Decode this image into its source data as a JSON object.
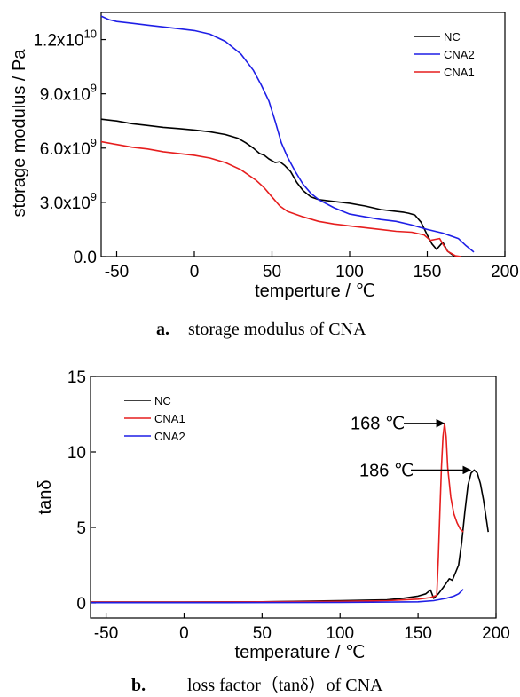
{
  "chart_data": [
    {
      "type": "line",
      "caption_letter": "a.",
      "caption_text": "storage modulus of CNA",
      "xlabel": "temperture / ℃",
      "ylabel": "storage modulus / Pa",
      "xlim": [
        -60,
        200
      ],
      "ylim": [
        0,
        13500000000
      ],
      "xticks": [
        -50,
        0,
        50,
        100,
        150,
        200
      ],
      "yticks": [
        {
          "value": 0,
          "base": "0.0",
          "exp": ""
        },
        {
          "value": 3000000000,
          "base": "3.0x10",
          "exp": "9"
        },
        {
          "value": 6000000000,
          "base": "6.0x10",
          "exp": "9"
        },
        {
          "value": 9000000000,
          "base": "9.0x10",
          "exp": "9"
        },
        {
          "value": 12000000000,
          "base": "1.2x10",
          "exp": "10"
        }
      ],
      "legend_position": "top-right",
      "series": [
        {
          "name": "NC",
          "color": "#000000",
          "points": [
            [
              -60,
              7600000000.0
            ],
            [
              -50,
              7500000000.0
            ],
            [
              -40,
              7350000000.0
            ],
            [
              -30,
              7250000000.0
            ],
            [
              -20,
              7150000000.0
            ],
            [
              -10,
              7080000000.0
            ],
            [
              0,
              7000000000.0
            ],
            [
              10,
              6900000000.0
            ],
            [
              20,
              6750000000.0
            ],
            [
              28,
              6550000000.0
            ],
            [
              33,
              6300000000.0
            ],
            [
              38,
              6000000000.0
            ],
            [
              42,
              5700000000.0
            ],
            [
              45,
              5600000000.0
            ],
            [
              48,
              5400000000.0
            ],
            [
              52,
              5200000000.0
            ],
            [
              55,
              5250000000.0
            ],
            [
              58,
              5050000000.0
            ],
            [
              62,
              4700000000.0
            ],
            [
              66,
              4100000000.0
            ],
            [
              70,
              3650000000.0
            ],
            [
              75,
              3300000000.0
            ],
            [
              80,
              3150000000.0
            ],
            [
              90,
              3050000000.0
            ],
            [
              100,
              2950000000.0
            ],
            [
              110,
              2800000000.0
            ],
            [
              120,
              2600000000.0
            ],
            [
              130,
              2500000000.0
            ],
            [
              135,
              2450000000.0
            ],
            [
              138,
              2400000000.0
            ],
            [
              142,
              2300000000.0
            ],
            [
              146,
              1900000000.0
            ],
            [
              150,
              1200000000.0
            ],
            [
              153,
              700000000.0
            ],
            [
              156,
              400000000.0
            ],
            [
              160,
              800000000.0
            ],
            [
              163,
              300000000.0
            ],
            [
              167,
              50000000.0
            ],
            [
              170,
              0.0
            ],
            [
              200,
              0.0
            ]
          ]
        },
        {
          "name": "CNA2",
          "color": "#1f1fe6",
          "points": [
            [
              -60,
              13300000000.0
            ],
            [
              -55,
              13100000000.0
            ],
            [
              -50,
              13000000000.0
            ],
            [
              -40,
              12900000000.0
            ],
            [
              -30,
              12800000000.0
            ],
            [
              -20,
              12700000000.0
            ],
            [
              -10,
              12600000000.0
            ],
            [
              0,
              12500000000.0
            ],
            [
              10,
              12300000000.0
            ],
            [
              20,
              11900000000.0
            ],
            [
              30,
              11200000000.0
            ],
            [
              38,
              10300000000.0
            ],
            [
              43,
              9500000000.0
            ],
            [
              48,
              8600000000.0
            ],
            [
              52,
              7500000000.0
            ],
            [
              56,
              6300000000.0
            ],
            [
              60,
              5500000000.0
            ],
            [
              65,
              4700000000.0
            ],
            [
              70,
              4000000000.0
            ],
            [
              75,
              3500000000.0
            ],
            [
              80,
              3150000000.0
            ],
            [
              90,
              2700000000.0
            ],
            [
              100,
              2350000000.0
            ],
            [
              110,
              2200000000.0
            ],
            [
              120,
              2050000000.0
            ],
            [
              130,
              1950000000.0
            ],
            [
              140,
              1750000000.0
            ],
            [
              150,
              1500000000.0
            ],
            [
              160,
              1300000000.0
            ],
            [
              170,
              1000000000.0
            ],
            [
              175,
              600000000.0
            ],
            [
              180,
              250000000.0
            ]
          ]
        },
        {
          "name": "CNA1",
          "color": "#e61e1e",
          "points": [
            [
              -60,
              6350000000.0
            ],
            [
              -50,
              6200000000.0
            ],
            [
              -40,
              6050000000.0
            ],
            [
              -30,
              5950000000.0
            ],
            [
              -20,
              5800000000.0
            ],
            [
              -10,
              5700000000.0
            ],
            [
              0,
              5600000000.0
            ],
            [
              10,
              5450000000.0
            ],
            [
              20,
              5200000000.0
            ],
            [
              30,
              4800000000.0
            ],
            [
              40,
              4200000000.0
            ],
            [
              45,
              3800000000.0
            ],
            [
              50,
              3300000000.0
            ],
            [
              55,
              2800000000.0
            ],
            [
              60,
              2500000000.0
            ],
            [
              70,
              2200000000.0
            ],
            [
              80,
              1950000000.0
            ],
            [
              90,
              1800000000.0
            ],
            [
              100,
              1700000000.0
            ],
            [
              110,
              1600000000.0
            ],
            [
              120,
              1500000000.0
            ],
            [
              130,
              1400000000.0
            ],
            [
              140,
              1350000000.0
            ],
            [
              148,
              1200000000.0
            ],
            [
              152,
              900000000.0
            ],
            [
              155,
              950000000.0
            ],
            [
              158,
              1000000000.0
            ],
            [
              160,
              700000000.0
            ],
            [
              163,
              300000000.0
            ],
            [
              168,
              50000000.0
            ],
            [
              172,
              0.0
            ]
          ]
        }
      ]
    },
    {
      "type": "line",
      "caption_letter": "b.",
      "caption_text": "loss factor（tanδ）of CNA",
      "xlabel": "temperature / ℃",
      "ylabel": "tanδ",
      "xlim": [
        -60,
        200
      ],
      "ylim": [
        -1,
        15
      ],
      "xticks": [
        -50,
        0,
        50,
        100,
        150,
        200
      ],
      "yticks": [
        0,
        5,
        10,
        15
      ],
      "legend_position": "top-left",
      "annotations": [
        {
          "text": "168 ℃",
          "x": 167,
          "y": 11.9
        },
        {
          "text": "186 ℃",
          "x": 184,
          "y": 8.8
        }
      ],
      "series": [
        {
          "name": "NC",
          "color": "#000000",
          "points": [
            [
              -60,
              0.05
            ],
            [
              0,
              0.05
            ],
            [
              50,
              0.07
            ],
            [
              100,
              0.15
            ],
            [
              130,
              0.2
            ],
            [
              140,
              0.3
            ],
            [
              150,
              0.45
            ],
            [
              155,
              0.6
            ],
            [
              158,
              0.85
            ],
            [
              160,
              0.3
            ],
            [
              163,
              0.6
            ],
            [
              166,
              1.0
            ],
            [
              168,
              1.3
            ],
            [
              170,
              1.6
            ],
            [
              172,
              1.5
            ],
            [
              174,
              2.0
            ],
            [
              176,
              2.5
            ],
            [
              178,
              4.0
            ],
            [
              180,
              6.0
            ],
            [
              182,
              7.8
            ],
            [
              184,
              8.6
            ],
            [
              186,
              8.8
            ],
            [
              188,
              8.6
            ],
            [
              190,
              7.9
            ],
            [
              192,
              6.8
            ],
            [
              195,
              4.7
            ]
          ]
        },
        {
          "name": "CNA1",
          "color": "#e61e1e",
          "points": [
            [
              -60,
              0.05
            ],
            [
              0,
              0.05
            ],
            [
              50,
              0.07
            ],
            [
              100,
              0.1
            ],
            [
              130,
              0.15
            ],
            [
              150,
              0.25
            ],
            [
              158,
              0.35
            ],
            [
              162,
              0.5
            ],
            [
              163,
              3.0
            ],
            [
              164,
              6.0
            ],
            [
              165,
              9.0
            ],
            [
              166,
              11.0
            ],
            [
              167,
              11.9
            ],
            [
              168,
              11.0
            ],
            [
              169,
              9.0
            ],
            [
              171,
              7.0
            ],
            [
              173,
              5.9
            ],
            [
              175,
              5.3
            ],
            [
              177,
              4.9
            ],
            [
              179,
              4.7
            ]
          ]
        },
        {
          "name": "CNA2",
          "color": "#1f1fe6",
          "points": [
            [
              -60,
              0.02
            ],
            [
              0,
              0.02
            ],
            [
              100,
              0.03
            ],
            [
              150,
              0.07
            ],
            [
              160,
              0.15
            ],
            [
              168,
              0.3
            ],
            [
              173,
              0.45
            ],
            [
              176,
              0.6
            ],
            [
              179,
              0.9
            ]
          ]
        }
      ]
    }
  ]
}
